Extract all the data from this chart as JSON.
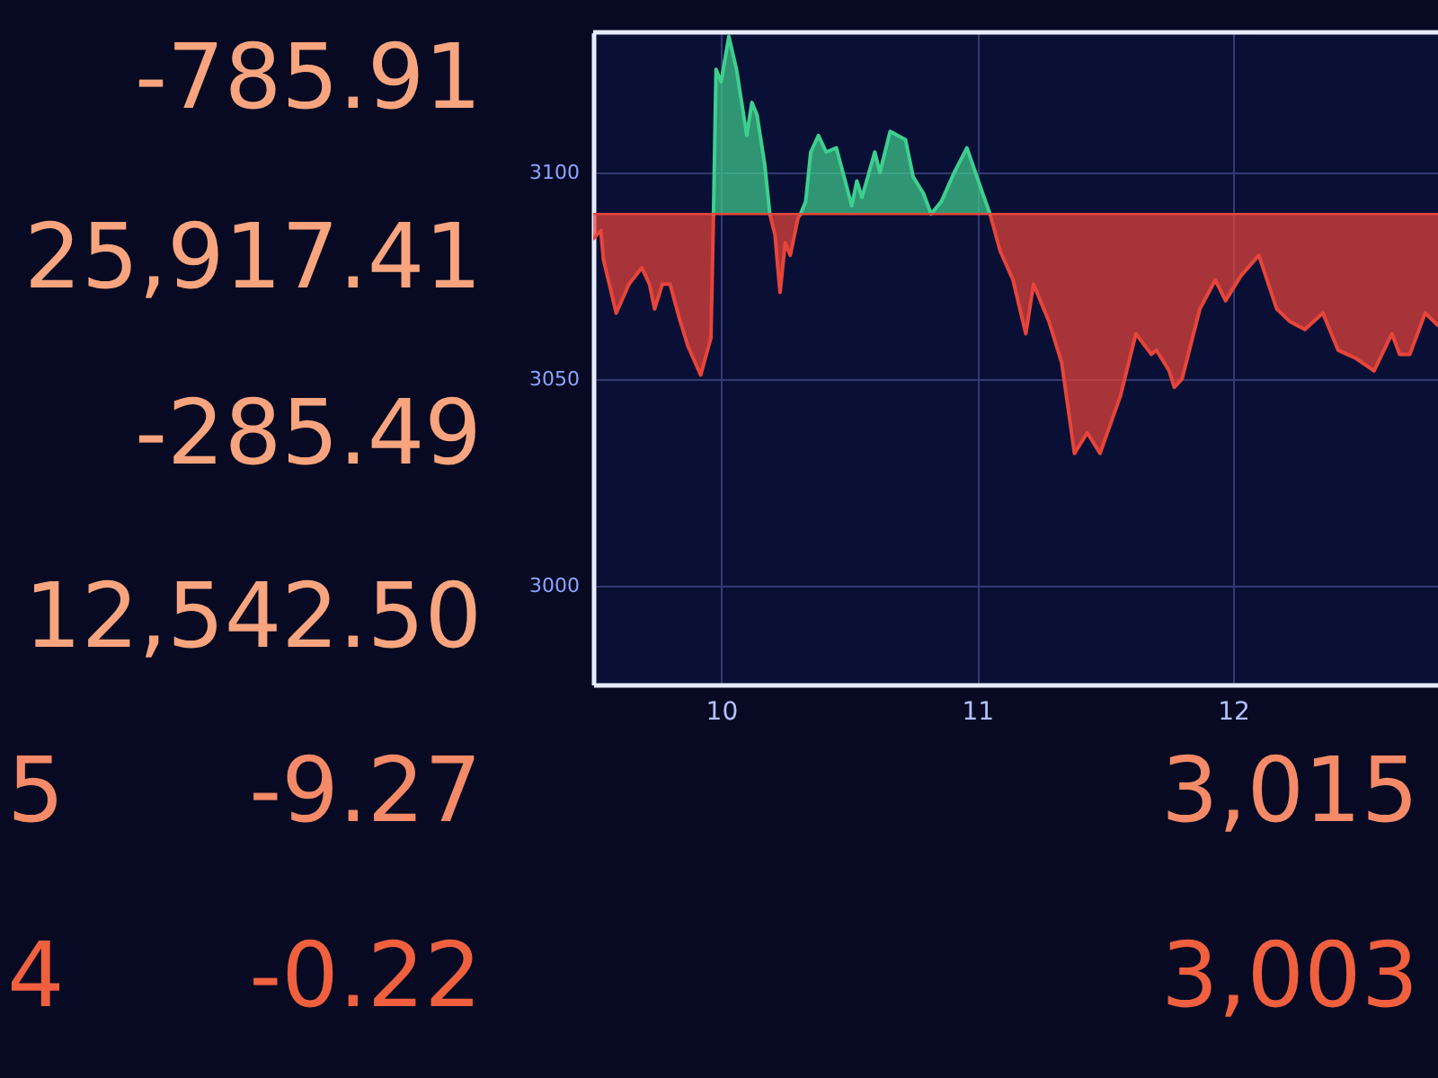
{
  "chart_data": {
    "type": "line",
    "series": [
      {
        "color": "#e8453a",
        "x": [
          9.5,
          9.53,
          9.54,
          9.59,
          9.64,
          9.69,
          9.72,
          9.74,
          9.77,
          9.8,
          9.84,
          9.87,
          9.92,
          9.96,
          9.97,
          10.1,
          10.19,
          10.21,
          10.23,
          10.25,
          10.27,
          10.3,
          10.31,
          10.6,
          11.05,
          11.09,
          11.14,
          11.19,
          11.22,
          11.28,
          11.33,
          11.38,
          11.43,
          11.48,
          11.56,
          11.62,
          11.68,
          11.7,
          11.75,
          11.77,
          11.8,
          11.87,
          11.93,
          11.97,
          12.03,
          12.1,
          12.17,
          12.22,
          12.28,
          12.35,
          12.41,
          12.48,
          12.55,
          12.62,
          12.65,
          12.69,
          12.75,
          12.8
        ],
        "values": [
          3084,
          3086,
          3079,
          3066,
          3073,
          3077,
          3073,
          3067,
          3073,
          3073,
          3064,
          3058,
          3051,
          3060,
          3090,
          null,
          3090,
          3085,
          3071,
          3083,
          3080,
          3089,
          3090,
          null,
          3090,
          3081,
          3074,
          3061,
          3073,
          3064,
          3054,
          3032,
          3037,
          3032,
          3046,
          3061,
          3056,
          3057,
          3052,
          3048,
          3050,
          3067,
          3074,
          3069,
          3075,
          3080,
          3067,
          3064,
          3062,
          3066,
          3057,
          3055,
          3052,
          3061,
          3056,
          3056,
          3066,
          3063
        ],
        "lower": [
          3084,
          3086,
          3079,
          3066,
          3073,
          3077,
          3073,
          3067,
          3073,
          3073,
          3064,
          3058,
          3051,
          3060,
          3090,
          null,
          3090,
          3085,
          3071,
          3083,
          3080,
          3089,
          3090,
          null,
          3090,
          3081,
          3074,
          3061,
          3073,
          3064,
          3054,
          3032,
          3037,
          3032,
          3046,
          3061,
          3056,
          3057,
          3052,
          3048,
          3050,
          3067,
          3074,
          3069,
          3075,
          3080,
          3067,
          3064,
          3062,
          3066,
          3057,
          3055,
          3052,
          3061,
          3056,
          3056,
          3066,
          3063
        ],
        "upper": [
          3090,
          3090,
          3090,
          3090,
          3090,
          3090,
          3090,
          3090,
          3090,
          3090,
          3090,
          3090,
          3090,
          3090,
          3090,
          null,
          3090,
          3090,
          3090,
          3090,
          3090,
          3090,
          3090,
          null,
          3090,
          3090,
          3090,
          3090,
          3090,
          3090,
          3090,
          3090,
          3090,
          3090,
          3090,
          3090,
          3090,
          3090,
          3090,
          3090,
          3090,
          3090,
          3090,
          3090,
          3090,
          3090,
          3090,
          3090,
          3090,
          3090,
          3090,
          3090,
          3090,
          3090,
          3090,
          3090,
          3090,
          3090
        ]
      },
      {
        "color": "#3ecf8e",
        "x": [
          9.97,
          9.98,
          10.0,
          10.03,
          10.06,
          10.1,
          10.12,
          10.14,
          10.17,
          10.19,
          10.25,
          10.31,
          10.33,
          10.35,
          10.38,
          10.41,
          10.45,
          10.48,
          10.51,
          10.53,
          10.55,
          10.6,
          10.62,
          10.66,
          10.72,
          10.75,
          10.79,
          10.82,
          10.86,
          10.91,
          10.96,
          11.01,
          11.05
        ],
        "values": [
          3090,
          3125,
          3122,
          3133,
          3125,
          3109,
          3117,
          3114,
          3102,
          3090,
          null,
          3090,
          3093,
          3105,
          3109,
          3105,
          3106,
          3099,
          3092,
          3098,
          3094,
          3105,
          3100,
          3110,
          3108,
          3099,
          3095,
          3090,
          3093,
          3100,
          3106,
          3097,
          3090
        ],
        "lower": [
          3090,
          3090,
          3090,
          3090,
          3090,
          3090,
          3090,
          3090,
          3090,
          3090,
          null,
          3090,
          3090,
          3090,
          3090,
          3090,
          3090,
          3090,
          3090,
          3090,
          3090,
          3090,
          3090,
          3090,
          3090,
          3090,
          3090,
          3090,
          3090,
          3090,
          3090,
          3090,
          3090
        ],
        "upper": [
          3090,
          3125,
          3122,
          3133,
          3125,
          3109,
          3117,
          3114,
          3102,
          3090,
          null,
          3090,
          3093,
          3105,
          3109,
          3105,
          3106,
          3099,
          3092,
          3098,
          3094,
          3105,
          3100,
          3110,
          3108,
          3099,
          3095,
          3090,
          3093,
          3100,
          3106,
          3097,
          3090
        ]
      }
    ],
    "xlim": [
      9.5,
      12.8
    ],
    "xticks": [
      10,
      11,
      12
    ],
    "ylim": [
      2976,
      3134
    ],
    "yticks": [
      3000,
      3050,
      3100
    ],
    "grid": true,
    "ref_lines": [
      {
        "axis": "y",
        "value": 3090,
        "color": "#e8453a"
      }
    ],
    "annotations": [
      "-785.91",
      "25,917.41",
      "-285.49",
      "12,542.50",
      "5",
      "-9.27",
      "3,015",
      "4",
      "-0.22",
      "3,003"
    ]
  }
}
